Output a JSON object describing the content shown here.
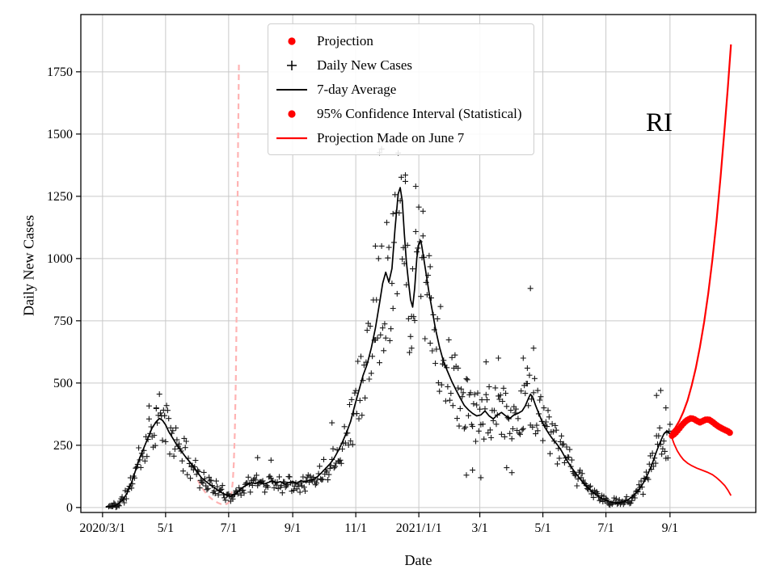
{
  "figure": {
    "annotation": "RI",
    "xlabel": "Date",
    "ylabel": "Daily New Cases"
  },
  "legend": {
    "items": [
      {
        "label": "Projection",
        "marker": "red-dot"
      },
      {
        "label": "Daily New Cases",
        "marker": "black-plus"
      },
      {
        "label": "7-day Average",
        "marker": "black-line"
      },
      {
        "label": "95% Confidence Interval (Statistical)",
        "marker": "red-dot"
      },
      {
        "label": "Projection Made on June 7",
        "marker": "red-line"
      }
    ]
  },
  "chart_data": {
    "type": "line",
    "title": "",
    "grid": true,
    "colors": {
      "average": "#000000",
      "scatter": "#000000",
      "projection": "#ff0000",
      "ci": "#ff0000",
      "june7": "#ffb3b3",
      "grid": "#c9c9c9",
      "frame": "#000000"
    },
    "x_axis": {
      "label": "Date",
      "day0": "2020/3/1",
      "tick_days": [
        0,
        61,
        122,
        184,
        245,
        306,
        365,
        426,
        487,
        549
      ],
      "tick_labels": [
        "2020/3/1",
        "5/1",
        "7/1",
        "9/1",
        "11/1",
        "2021/1/1",
        "3/1",
        "5/1",
        "7/1",
        "9/1"
      ],
      "xlim_days": [
        -21,
        632
      ]
    },
    "y_axis": {
      "label": "Daily New Cases",
      "ticks": [
        0,
        250,
        500,
        750,
        1000,
        1250,
        1500,
        1750
      ],
      "ylim": [
        -20,
        1980
      ]
    },
    "annotation": {
      "text": "RI",
      "day": 543,
      "value": 1530
    },
    "series": [
      {
        "name": "7-day Average",
        "type": "line",
        "color_key": "average",
        "width": 1.7,
        "points": [
          [
            3,
            2
          ],
          [
            8,
            4
          ],
          [
            12,
            8
          ],
          [
            16,
            18
          ],
          [
            20,
            32
          ],
          [
            24,
            60
          ],
          [
            28,
            100
          ],
          [
            32,
            150
          ],
          [
            36,
            200
          ],
          [
            40,
            240
          ],
          [
            44,
            280
          ],
          [
            48,
            320
          ],
          [
            52,
            345
          ],
          [
            55,
            358
          ],
          [
            58,
            350
          ],
          [
            61,
            332
          ],
          [
            64,
            305
          ],
          [
            68,
            278
          ],
          [
            72,
            250
          ],
          [
            76,
            228
          ],
          [
            80,
            205
          ],
          [
            84,
            185
          ],
          [
            88,
            165
          ],
          [
            92,
            140
          ],
          [
            96,
            118
          ],
          [
            100,
            105
          ],
          [
            104,
            92
          ],
          [
            108,
            80
          ],
          [
            112,
            68
          ],
          [
            116,
            58
          ],
          [
            120,
            50
          ],
          [
            124,
            46
          ],
          [
            128,
            52
          ],
          [
            132,
            68
          ],
          [
            136,
            82
          ],
          [
            140,
            92
          ],
          [
            144,
            100
          ],
          [
            148,
            96
          ],
          [
            152,
            104
          ],
          [
            156,
            94
          ],
          [
            160,
            100
          ],
          [
            164,
            106
          ],
          [
            168,
            98
          ],
          [
            172,
            104
          ],
          [
            176,
            94
          ],
          [
            180,
            100
          ],
          [
            184,
            104
          ],
          [
            188,
            98
          ],
          [
            192,
            108
          ],
          [
            196,
            102
          ],
          [
            200,
            110
          ],
          [
            204,
            112
          ],
          [
            208,
            124
          ],
          [
            212,
            140
          ],
          [
            216,
            158
          ],
          [
            220,
            175
          ],
          [
            224,
            198
          ],
          [
            228,
            228
          ],
          [
            232,
            262
          ],
          [
            236,
            300
          ],
          [
            240,
            345
          ],
          [
            244,
            410
          ],
          [
            248,
            470
          ],
          [
            252,
            530
          ],
          [
            256,
            575
          ],
          [
            260,
            640
          ],
          [
            264,
            720
          ],
          [
            268,
            820
          ],
          [
            271,
            900
          ],
          [
            274,
            945
          ],
          [
            277,
            905
          ],
          [
            280,
            960
          ],
          [
            283,
            1120
          ],
          [
            286,
            1260
          ],
          [
            288,
            1285
          ],
          [
            290,
            1230
          ],
          [
            292,
            1100
          ],
          [
            294,
            985
          ],
          [
            296,
            905
          ],
          [
            298,
            835
          ],
          [
            300,
            805
          ],
          [
            302,
            880
          ],
          [
            304,
            1000
          ],
          [
            306,
            1060
          ],
          [
            308,
            1072
          ],
          [
            310,
            1020
          ],
          [
            313,
            940
          ],
          [
            316,
            860
          ],
          [
            319,
            790
          ],
          [
            322,
            720
          ],
          [
            326,
            645
          ],
          [
            330,
            585
          ],
          [
            334,
            545
          ],
          [
            338,
            505
          ],
          [
            342,
            472
          ],
          [
            346,
            440
          ],
          [
            350,
            410
          ],
          [
            354,
            392
          ],
          [
            358,
            378
          ],
          [
            362,
            368
          ],
          [
            366,
            372
          ],
          [
            370,
            388
          ],
          [
            374,
            368
          ],
          [
            378,
            356
          ],
          [
            382,
            372
          ],
          [
            386,
            382
          ],
          [
            390,
            368
          ],
          [
            394,
            358
          ],
          [
            398,
            372
          ],
          [
            402,
            378
          ],
          [
            406,
            388
          ],
          [
            409,
            408
          ],
          [
            412,
            438
          ],
          [
            414,
            455
          ],
          [
            416,
            445
          ],
          [
            419,
            410
          ],
          [
            422,
            378
          ],
          [
            425,
            348
          ],
          [
            428,
            322
          ],
          [
            432,
            295
          ],
          [
            436,
            272
          ],
          [
            440,
            252
          ],
          [
            444,
            228
          ],
          [
            448,
            198
          ],
          [
            452,
            172
          ],
          [
            456,
            148
          ],
          [
            460,
            126
          ],
          [
            464,
            104
          ],
          [
            468,
            86
          ],
          [
            472,
            70
          ],
          [
            476,
            56
          ],
          [
            480,
            44
          ],
          [
            484,
            34
          ],
          [
            488,
            27
          ],
          [
            492,
            22
          ],
          [
            496,
            19
          ],
          [
            500,
            19
          ],
          [
            504,
            23
          ],
          [
            508,
            30
          ],
          [
            512,
            42
          ],
          [
            516,
            58
          ],
          [
            520,
            78
          ],
          [
            524,
            104
          ],
          [
            528,
            138
          ],
          [
            532,
            178
          ],
          [
            536,
            225
          ],
          [
            540,
            268
          ],
          [
            543,
            295
          ],
          [
            546,
            308
          ],
          [
            549,
            296
          ],
          [
            551,
            286
          ]
        ]
      },
      {
        "name": "Projection",
        "type": "dots",
        "color_key": "projection",
        "dot_width": 8,
        "step_days": 1.8,
        "points": [
          [
            551,
            288
          ],
          [
            554,
            298
          ],
          [
            557,
            312
          ],
          [
            560,
            328
          ],
          [
            563,
            342
          ],
          [
            566,
            352
          ],
          [
            569,
            358
          ],
          [
            572,
            356
          ],
          [
            575,
            348
          ],
          [
            578,
            342
          ],
          [
            581,
            348
          ],
          [
            584,
            354
          ],
          [
            587,
            352
          ],
          [
            590,
            344
          ],
          [
            593,
            334
          ],
          [
            596,
            325
          ],
          [
            599,
            318
          ],
          [
            602,
            312
          ],
          [
            605,
            306
          ],
          [
            607,
            300
          ]
        ]
      },
      {
        "name": "95% CI Upper",
        "type": "line",
        "color_key": "ci",
        "width": 2.2,
        "points": [
          [
            550,
            300
          ],
          [
            554,
            320
          ],
          [
            558,
            348
          ],
          [
            562,
            385
          ],
          [
            566,
            430
          ],
          [
            570,
            490
          ],
          [
            574,
            560
          ],
          [
            578,
            645
          ],
          [
            582,
            745
          ],
          [
            586,
            860
          ],
          [
            590,
            995
          ],
          [
            594,
            1150
          ],
          [
            598,
            1330
          ],
          [
            602,
            1530
          ],
          [
            605,
            1690
          ],
          [
            608,
            1860
          ]
        ]
      },
      {
        "name": "95% CI Lower",
        "type": "line",
        "color_key": "ci",
        "width": 1.8,
        "points": [
          [
            550,
            290
          ],
          [
            553,
            255
          ],
          [
            556,
            228
          ],
          [
            559,
            208
          ],
          [
            562,
            192
          ],
          [
            566,
            178
          ],
          [
            570,
            168
          ],
          [
            575,
            158
          ],
          [
            580,
            150
          ],
          [
            585,
            142
          ],
          [
            590,
            132
          ],
          [
            594,
            120
          ],
          [
            598,
            105
          ],
          [
            602,
            88
          ],
          [
            605,
            70
          ],
          [
            608,
            48
          ]
        ]
      },
      {
        "name": "Projection Made on June 7",
        "type": "line",
        "color_key": "june7",
        "width": 2.2,
        "dash": "7 5",
        "points": [
          [
            92,
            110
          ],
          [
            96,
            80
          ],
          [
            100,
            58
          ],
          [
            104,
            40
          ],
          [
            108,
            27
          ],
          [
            112,
            18
          ],
          [
            115,
            13
          ],
          [
            118,
            12
          ],
          [
            120,
            14
          ],
          [
            122,
            20
          ],
          [
            123,
            28
          ],
          [
            124,
            42
          ],
          [
            125,
            65
          ],
          [
            126,
            105
          ],
          [
            127,
            175
          ],
          [
            128,
            300
          ],
          [
            129,
            520
          ],
          [
            130,
            900
          ],
          [
            131,
            1420
          ],
          [
            132,
            1790
          ]
        ]
      }
    ],
    "scatter": {
      "name": "Daily New Cases",
      "marker": "plus",
      "color_key": "scatter",
      "size": 7,
      "generated_from": "7-day Average",
      "day_range": [
        6,
        550
      ],
      "rel_noise": 0.3,
      "abs_noise": 16,
      "seed": 11,
      "outliers": [
        [
          264,
          1050
        ],
        [
          268,
          1425
        ],
        [
          270,
          1440
        ],
        [
          277,
          1650
        ],
        [
          281,
          1180
        ],
        [
          293,
          1310
        ],
        [
          299,
          640
        ],
        [
          303,
          1290
        ],
        [
          310,
          1190
        ],
        [
          317,
          660
        ],
        [
          344,
          560
        ],
        [
          352,
          130
        ],
        [
          358,
          150
        ],
        [
          366,
          120
        ],
        [
          371,
          585
        ],
        [
          383,
          600
        ],
        [
          391,
          160
        ],
        [
          396,
          140
        ],
        [
          407,
          600
        ],
        [
          411,
          560
        ],
        [
          414,
          880
        ],
        [
          417,
          640
        ],
        [
          421,
          470
        ],
        [
          45,
          408
        ],
        [
          52,
          400
        ],
        [
          150,
          200
        ],
        [
          163,
          190
        ],
        [
          222,
          340
        ],
        [
          536,
          450
        ],
        [
          540,
          470
        ],
        [
          545,
          400
        ]
      ]
    }
  }
}
